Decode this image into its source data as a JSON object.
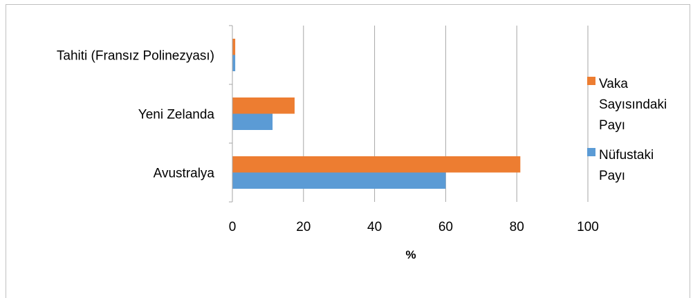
{
  "chart_data": {
    "type": "bar",
    "orientation": "horizontal",
    "title": "",
    "xlabel": "%",
    "ylabel": "",
    "xlim": [
      0,
      100
    ],
    "xticks": [
      0,
      20,
      40,
      60,
      80,
      100
    ],
    "grid": true,
    "legend_position": "right",
    "categories": [
      "Tahiti (Fransız Polinezyası)",
      "Yeni Zelanda",
      "Avustralya"
    ],
    "series": [
      {
        "name": "Vaka Sayısındaki Payı",
        "color": "#ED7D31",
        "values": [
          0.8,
          17.5,
          81
        ]
      },
      {
        "name": "Nüfustaki Payı",
        "color": "#5B9BD5",
        "values": [
          0.8,
          11.3,
          60
        ]
      }
    ],
    "legend_lines": [
      [
        "Vaka",
        "Sayısındaki",
        "Payı"
      ],
      [
        "Nüfustaki",
        "Payı"
      ]
    ]
  }
}
